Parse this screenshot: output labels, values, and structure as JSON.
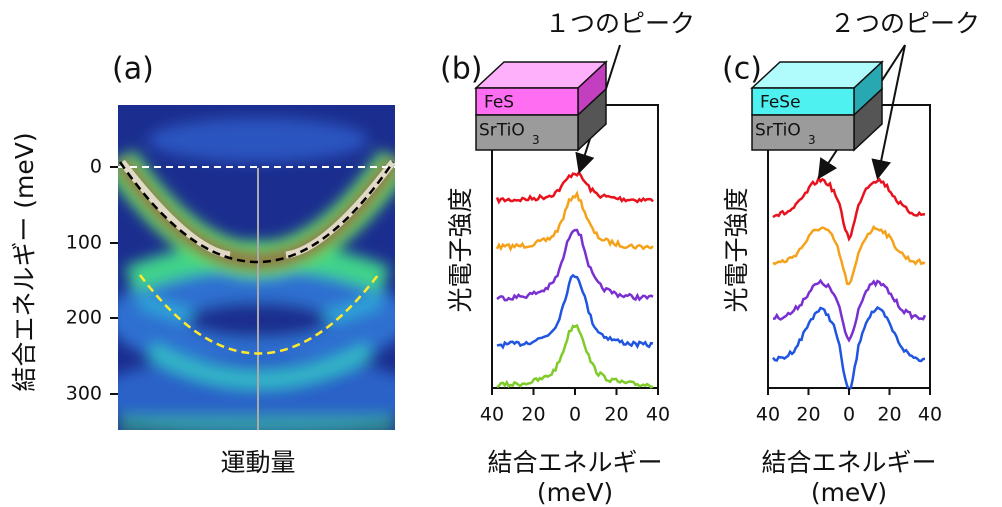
{
  "panels": [
    {
      "label": "(a)",
      "y_axis_title": "結合エネルギー (meV)",
      "y_ticks": [
        "0",
        "100",
        "200",
        "300"
      ],
      "x_axis_title": "運動量"
    },
    {
      "label": "(b)",
      "annotation": "１つのピーク",
      "film": "FeS",
      "substrate": "SrTiO",
      "substrate_subscript": "3",
      "y_axis_title": "光電子強度",
      "x_ticks": [
        "40",
        "20",
        "0",
        "20",
        "40"
      ],
      "x_axis_title": "結合エネルギー",
      "x_axis_unit": "(meV)"
    },
    {
      "label": "(c)",
      "annotation": "２つのピーク",
      "film": "FeSe",
      "substrate": "SrTiO",
      "substrate_subscript": "3",
      "y_axis_title": "光電子強度",
      "x_ticks": [
        "40",
        "20",
        "0",
        "20",
        "40"
      ],
      "x_axis_title": "結合エネルギー",
      "x_axis_unit": "(meV)"
    }
  ]
}
